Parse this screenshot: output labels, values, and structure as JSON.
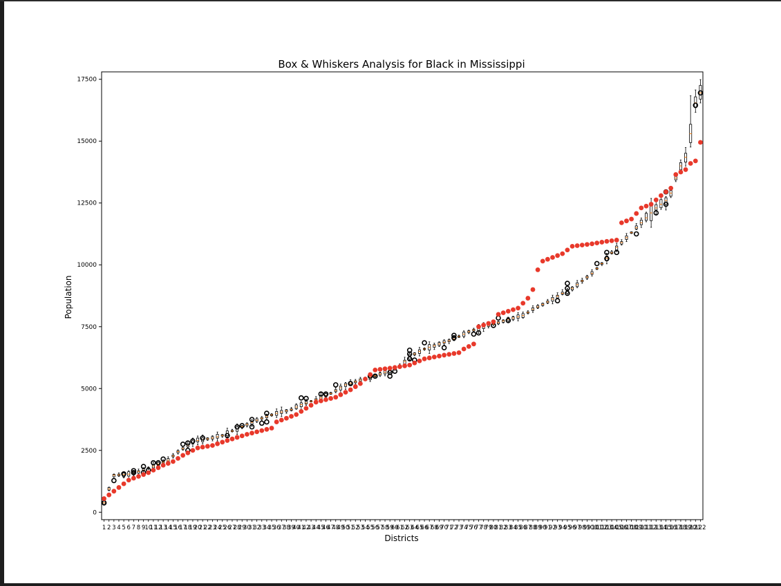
{
  "chart_data": {
    "type": "box",
    "title": "Box & Whiskers Analysis for Black in Mississippi",
    "xlabel": "Districts",
    "ylabel": "Population",
    "ylim": [
      -300,
      17800
    ],
    "yticks": [
      0,
      2500,
      5000,
      7500,
      10000,
      12500,
      15000,
      17500
    ],
    "categories_count": 122,
    "grid": false,
    "colors": {
      "box": "#000000",
      "median": "#ff7f0e",
      "outlier_ring": "#000000",
      "red_points": "#e8392b"
    },
    "medians_anchor": [
      [
        1,
        380
      ],
      [
        3,
        1500
      ],
      [
        6,
        1540
      ],
      [
        9,
        1700
      ],
      [
        12,
        1950
      ],
      [
        14,
        2100
      ],
      [
        16,
        2450
      ],
      [
        18,
        2700
      ],
      [
        20,
        2900
      ],
      [
        23,
        3000
      ],
      [
        25,
        3100
      ],
      [
        30,
        3550
      ],
      [
        33,
        3800
      ],
      [
        36,
        4000
      ],
      [
        39,
        4150
      ],
      [
        41,
        4350
      ],
      [
        44,
        4550
      ],
      [
        47,
        4800
      ],
      [
        50,
        5150
      ],
      [
        53,
        5350
      ],
      [
        55,
        5450
      ],
      [
        58,
        5650
      ],
      [
        61,
        5900
      ],
      [
        63,
        6300
      ],
      [
        66,
        6600
      ],
      [
        69,
        6800
      ],
      [
        72,
        7000
      ],
      [
        75,
        7300
      ],
      [
        78,
        7500
      ],
      [
        80,
        7600
      ],
      [
        83,
        7800
      ],
      [
        86,
        7950
      ],
      [
        88,
        8200
      ],
      [
        91,
        8500
      ],
      [
        94,
        8850
      ],
      [
        96,
        9050
      ],
      [
        98,
        9350
      ],
      [
        100,
        9650
      ],
      [
        102,
        10050
      ],
      [
        105,
        10700
      ],
      [
        108,
        11300
      ],
      [
        111,
        11900
      ],
      [
        113,
        12300
      ],
      [
        115,
        12600
      ],
      [
        116,
        12900
      ],
      [
        117,
        13500
      ],
      [
        118,
        14000
      ],
      [
        119,
        14350
      ],
      [
        120,
        15300
      ],
      [
        121,
        16550
      ],
      [
        122,
        16950
      ]
    ],
    "red_anchor": [
      [
        1,
        550
      ],
      [
        4,
        1000
      ],
      [
        6,
        1300
      ],
      [
        10,
        1600
      ],
      [
        13,
        1900
      ],
      [
        15,
        2050
      ],
      [
        17,
        2300
      ],
      [
        20,
        2600
      ],
      [
        23,
        2700
      ],
      [
        26,
        2900
      ],
      [
        30,
        3150
      ],
      [
        35,
        3400
      ],
      [
        36,
        3650
      ],
      [
        40,
        3950
      ],
      [
        42,
        4200
      ],
      [
        44,
        4450
      ],
      [
        48,
        4650
      ],
      [
        51,
        4950
      ],
      [
        53,
        5200
      ],
      [
        56,
        5750
      ],
      [
        60,
        5850
      ],
      [
        63,
        5950
      ],
      [
        66,
        6200
      ],
      [
        70,
        6350
      ],
      [
        73,
        6450
      ],
      [
        74,
        6600
      ],
      [
        76,
        6800
      ],
      [
        77,
        7500
      ],
      [
        80,
        7700
      ],
      [
        81,
        8000
      ],
      [
        85,
        8250
      ],
      [
        87,
        8650
      ],
      [
        88,
        9000
      ],
      [
        89,
        9800
      ],
      [
        90,
        10150
      ],
      [
        92,
        10300
      ],
      [
        94,
        10450
      ],
      [
        96,
        10750
      ],
      [
        100,
        10850
      ],
      [
        103,
        10950
      ],
      [
        105,
        11000
      ],
      [
        106,
        11700
      ],
      [
        108,
        11850
      ],
      [
        110,
        12300
      ],
      [
        112,
        12450
      ],
      [
        114,
        12800
      ],
      [
        116,
        13100
      ],
      [
        117,
        13650
      ],
      [
        119,
        13850
      ],
      [
        120,
        14100
      ],
      [
        121,
        14200
      ],
      [
        122,
        14950
      ]
    ],
    "outliers": [
      [
        1,
        380
      ],
      [
        3,
        1280
      ],
      [
        5,
        1550
      ],
      [
        7,
        1600
      ],
      [
        7,
        1680
      ],
      [
        9,
        1600
      ],
      [
        9,
        1850
      ],
      [
        10,
        1700
      ],
      [
        11,
        2000
      ],
      [
        12,
        2000
      ],
      [
        13,
        2150
      ],
      [
        17,
        2750
      ],
      [
        18,
        2500
      ],
      [
        18,
        2800
      ],
      [
        19,
        2880
      ],
      [
        21,
        3000
      ],
      [
        26,
        3100
      ],
      [
        28,
        3450
      ],
      [
        29,
        3500
      ],
      [
        31,
        3450
      ],
      [
        31,
        3750
      ],
      [
        33,
        3600
      ],
      [
        34,
        3650
      ],
      [
        34,
        4000
      ],
      [
        41,
        4620
      ],
      [
        42,
        4600
      ],
      [
        45,
        4780
      ],
      [
        46,
        4780
      ],
      [
        48,
        5150
      ],
      [
        51,
        5200
      ],
      [
        55,
        5500
      ],
      [
        56,
        5500
      ],
      [
        59,
        5500
      ],
      [
        59,
        5650
      ],
      [
        60,
        5700
      ],
      [
        63,
        6200
      ],
      [
        63,
        6400
      ],
      [
        63,
        6550
      ],
      [
        64,
        6150
      ],
      [
        66,
        6850
      ],
      [
        70,
        6650
      ],
      [
        72,
        7150
      ],
      [
        72,
        7050
      ],
      [
        76,
        7200
      ],
      [
        77,
        7250
      ],
      [
        80,
        7550
      ],
      [
        81,
        7850
      ],
      [
        83,
        7750
      ],
      [
        93,
        8550
      ],
      [
        95,
        8850
      ],
      [
        95,
        9050
      ],
      [
        95,
        9250
      ],
      [
        101,
        10050
      ],
      [
        103,
        10250
      ],
      [
        103,
        10500
      ],
      [
        105,
        10500
      ],
      [
        109,
        11250
      ],
      [
        113,
        12100
      ],
      [
        115,
        12450
      ],
      [
        115,
        12950
      ],
      [
        121,
        16450
      ],
      [
        122,
        16950
      ]
    ]
  }
}
